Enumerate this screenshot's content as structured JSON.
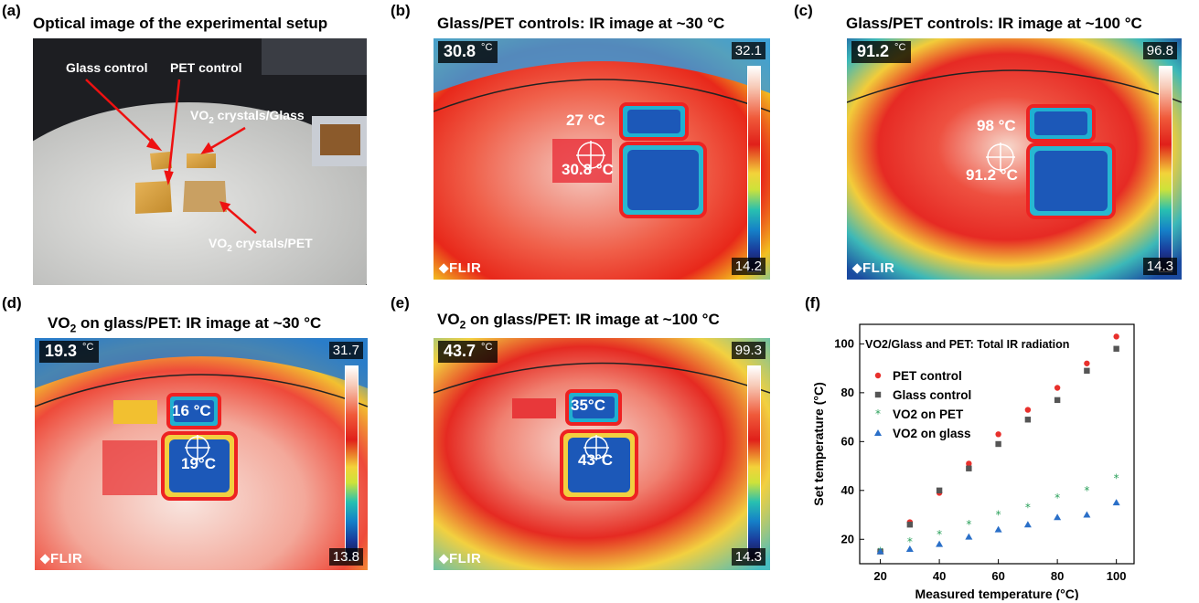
{
  "panels": {
    "a": {
      "label": "(a)",
      "title": "Optical image of the experimental setup",
      "annotations": {
        "glass_control": "Glass control",
        "pet_control": "PET control",
        "vo2_glass_pre": "VO",
        "vo2_glass_sub": "2",
        "vo2_glass_post": " crystals/Glass",
        "vo2_pet_pre": "VO",
        "vo2_pet_sub": "2",
        "vo2_pet_post": " crystals/PET"
      }
    },
    "b": {
      "label": "(b)",
      "title": "Glass/PET controls: IR image at ~30 °C",
      "readout": "30.8",
      "unit": "°C",
      "scale_max": "32.1",
      "scale_min": "14.2",
      "temp_upper": "27 °C",
      "temp_lower": "30.8 °C",
      "brand": "FLIR"
    },
    "c": {
      "label": "(c)",
      "title": "Glass/PET controls: IR image at ~100 °C",
      "readout": "91.2",
      "unit": "°C",
      "scale_max": "96.8",
      "scale_min": "14.3",
      "temp_upper": "98 °C",
      "temp_lower": "91.2 °C",
      "brand": "FLIR"
    },
    "d": {
      "label": "(d)",
      "title_pre": "VO",
      "title_sub": "2",
      "title_post": " on glass/PET: IR image at ~30 °C",
      "readout": "19.3",
      "unit": "°C",
      "scale_max": "31.7",
      "scale_min": "13.8",
      "temp_upper": "16 °C",
      "temp_lower": "19°C",
      "brand": "FLIR"
    },
    "e": {
      "label": "(e)",
      "title_pre": "VO",
      "title_sub": "2",
      "title_post": " on glass/PET: IR image at ~100 °C",
      "readout": "43.7",
      "unit": "°C",
      "scale_max": "99.3",
      "scale_min": "14.3",
      "temp_upper": "35°C",
      "temp_lower": "43°C",
      "brand": "FLIR"
    },
    "f": {
      "label": "(f)"
    }
  },
  "chart_data": {
    "type": "scatter",
    "title": "VO2/Glass and PET: Total IR radiation",
    "xlabel": "Measured temperature (°C)",
    "ylabel": "Set temperature (°C)",
    "xlim": [
      13,
      106
    ],
    "ylim": [
      10,
      108
    ],
    "xticks": [
      20,
      40,
      60,
      80,
      100
    ],
    "yticks": [
      20,
      40,
      60,
      80,
      100
    ],
    "legend_position": "upper-left",
    "series": [
      {
        "name": "PET control",
        "marker": "circle",
        "color": "#e8302c",
        "x": [
          20,
          30,
          40,
          50,
          60,
          70,
          80,
          90,
          100
        ],
        "y": [
          15,
          27,
          39,
          51,
          63,
          73,
          82,
          92,
          103
        ]
      },
      {
        "name": "Glass control",
        "marker": "square",
        "color": "#555555",
        "x": [
          20,
          30,
          40,
          50,
          60,
          70,
          80,
          90,
          100
        ],
        "y": [
          15,
          26,
          40,
          49,
          59,
          69,
          77,
          89,
          98
        ]
      },
      {
        "name": "VO2 on PET",
        "marker": "star",
        "color": "#2aa05a",
        "x": [
          20,
          30,
          40,
          50,
          60,
          70,
          80,
          90,
          100
        ],
        "y": [
          15,
          19,
          22,
          26,
          30,
          33,
          37,
          40,
          45
        ]
      },
      {
        "name": "VO2 on glass",
        "marker": "triangle",
        "color": "#2a6fc8",
        "x": [
          20,
          30,
          40,
          50,
          60,
          70,
          80,
          90,
          100
        ],
        "y": [
          15,
          16,
          18,
          21,
          24,
          26,
          29,
          30,
          35
        ]
      }
    ]
  }
}
